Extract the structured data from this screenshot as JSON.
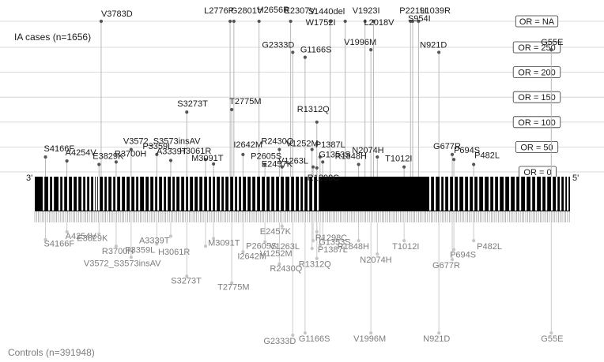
{
  "chart_data": {
    "type": "lollipop",
    "title": "",
    "case_group_label": "IA cases (n=1656)",
    "control_group_label": "Controls (n=391948)",
    "end_label_left": "3'",
    "end_label_right": "5'",
    "or_reference_lines": [
      {
        "label": "OR = NA",
        "value": null
      },
      {
        "label": "OR = 250",
        "value": 250
      },
      {
        "label": "OR = 200",
        "value": 200
      },
      {
        "label": "OR = 150",
        "value": 150
      },
      {
        "label": "OR = 100",
        "value": 100
      },
      {
        "label": "OR = 50",
        "value": 50
      },
      {
        "label": "OR = 0",
        "value": 0
      }
    ],
    "cases": [
      {
        "variant": "S4166F",
        "pos": 0.02,
        "or": 30
      },
      {
        "variant": "A4254V",
        "pos": 0.06,
        "or": 22
      },
      {
        "variant": "E3829K",
        "pos": 0.12,
        "or": 15
      },
      {
        "variant": "V3783D",
        "pos": 0.124,
        "or": "NA"
      },
      {
        "variant": "R3700H",
        "pos": 0.152,
        "or": 20
      },
      {
        "variant": "V3572_S3573insAV",
        "pos": 0.18,
        "or": 45
      },
      {
        "variant": "P3359L",
        "pos": 0.228,
        "or": 35
      },
      {
        "variant": "A3339T",
        "pos": 0.254,
        "or": 23
      },
      {
        "variant": "S3273T",
        "pos": 0.284,
        "or": 120
      },
      {
        "variant": "H3061R",
        "pos": 0.319,
        "or": 25
      },
      {
        "variant": "M3091T",
        "pos": 0.334,
        "or": 16
      },
      {
        "variant": "L2776P",
        "pos": 0.365,
        "or": "NA"
      },
      {
        "variant": "T2775M",
        "pos": 0.368,
        "or": 125
      },
      {
        "variant": "G2801V",
        "pos": 0.372,
        "or": "NA"
      },
      {
        "variant": "I2642M",
        "pos": 0.389,
        "or": 35
      },
      {
        "variant": "H2656R",
        "pos": 0.419,
        "or": "NA"
      },
      {
        "variant": "P2605S",
        "pos": 0.43,
        "or": 15
      },
      {
        "variant": "R2430Q",
        "pos": 0.457,
        "or": 45
      },
      {
        "variant": "E2307V",
        "pos": 0.478,
        "or": "NA"
      },
      {
        "variant": "G2333D",
        "pos": 0.482,
        "or": 240
      },
      {
        "variant": "E2457K",
        "pos": 0.462,
        "or": 10
      },
      {
        "variant": "G1166S",
        "pos": 0.505,
        "or": 230
      },
      {
        "variant": "V1252M",
        "pos": 0.518,
        "or": 45
      },
      {
        "variant": "R1312Q",
        "pos": 0.527,
        "or": 100
      },
      {
        "variant": "V1263L",
        "pos": 0.52,
        "or": 10
      },
      {
        "variant": "P1387L",
        "pos": 0.533,
        "or": 30
      },
      {
        "variant": "R1298C",
        "pos": 0.527,
        "or": 8
      },
      {
        "variant": "G1353S",
        "pos": 0.538,
        "or": 20
      },
      {
        "variant": "S1440del",
        "pos": 0.552,
        "or": "NA"
      },
      {
        "variant": "W1752I",
        "pos": 0.58,
        "or": "NA"
      },
      {
        "variant": "R1848H",
        "pos": 0.605,
        "or": 15
      },
      {
        "variant": "V1923I",
        "pos": 0.617,
        "or": "NA"
      },
      {
        "variant": "N2074H",
        "pos": 0.64,
        "or": 30
      },
      {
        "variant": "V1996M",
        "pos": 0.628,
        "or": 245
      },
      {
        "variant": "L2018V",
        "pos": 0.633,
        "or": "NA"
      },
      {
        "variant": "T1012I",
        "pos": 0.69,
        "or": 10
      },
      {
        "variant": "P2219L",
        "pos": 0.702,
        "or": "NA"
      },
      {
        "variant": "S954I",
        "pos": 0.706,
        "or": "NA"
      },
      {
        "variant": "L1039R",
        "pos": 0.717,
        "or": "NA"
      },
      {
        "variant": "N921D",
        "pos": 0.755,
        "or": 240
      },
      {
        "variant": "G677R",
        "pos": 0.78,
        "or": 35
      },
      {
        "variant": "P694S",
        "pos": 0.783,
        "or": 25
      },
      {
        "variant": "P482L",
        "pos": 0.82,
        "or": 15
      },
      {
        "variant": "G55E",
        "pos": 0.965,
        "or": 245
      }
    ],
    "controls": [
      {
        "variant": "A4254V",
        "pos": 0.06,
        "depth": 0.07
      },
      {
        "variant": "S4166F",
        "pos": 0.02,
        "depth": 0.14
      },
      {
        "variant": "E3829K",
        "pos": 0.12,
        "depth": 0.09
      },
      {
        "variant": "R3700H",
        "pos": 0.152,
        "depth": 0.2
      },
      {
        "variant": "V3572_S3573insAV",
        "pos": 0.18,
        "depth": 0.3
      },
      {
        "variant": "A3339T",
        "pos": 0.254,
        "depth": 0.11
      },
      {
        "variant": "P3359L",
        "pos": 0.228,
        "depth": 0.18
      },
      {
        "variant": "M3091T",
        "pos": 0.334,
        "depth": 0.13
      },
      {
        "variant": "H3061R",
        "pos": 0.319,
        "depth": 0.2
      },
      {
        "variant": "S3273T",
        "pos": 0.284,
        "depth": 0.47
      },
      {
        "variant": "T2775M",
        "pos": 0.368,
        "depth": 0.53
      },
      {
        "variant": "I2642M",
        "pos": 0.389,
        "depth": 0.25
      },
      {
        "variant": "P2605S",
        "pos": 0.43,
        "depth": 0.16
      },
      {
        "variant": "R2430Q",
        "pos": 0.457,
        "depth": 0.36
      },
      {
        "variant": "E2457K",
        "pos": 0.462,
        "depth": 0.02
      },
      {
        "variant": "V1263L",
        "pos": 0.52,
        "depth": 0.15
      },
      {
        "variant": "V1252M",
        "pos": 0.518,
        "depth": 0.22
      },
      {
        "variant": "R1312Q",
        "pos": 0.527,
        "depth": 0.31
      },
      {
        "variant": "R1298C",
        "pos": 0.527,
        "depth": 0.07
      },
      {
        "variant": "P1387L",
        "pos": 0.533,
        "depth": 0.19
      },
      {
        "variant": "G1353S",
        "pos": 0.538,
        "depth": 0.13
      },
      {
        "variant": "R1848H",
        "pos": 0.605,
        "depth": 0.15
      },
      {
        "variant": "N2074H",
        "pos": 0.64,
        "depth": 0.27
      },
      {
        "variant": "T1012I",
        "pos": 0.69,
        "depth": 0.15
      },
      {
        "variant": "P482L",
        "pos": 0.82,
        "depth": 0.15
      },
      {
        "variant": "P694S",
        "pos": 0.783,
        "depth": 0.23
      },
      {
        "variant": "G677R",
        "pos": 0.78,
        "depth": 0.32
      },
      {
        "variant": "G2333D",
        "pos": 0.482,
        "depth": 1.0
      },
      {
        "variant": "G1166S",
        "pos": 0.505,
        "depth": 0.98
      },
      {
        "variant": "V1996M",
        "pos": 0.628,
        "depth": 0.98
      },
      {
        "variant": "N921D",
        "pos": 0.755,
        "depth": 0.98
      },
      {
        "variant": "G55E",
        "pos": 0.965,
        "depth": 0.98
      }
    ],
    "colors": {
      "case_point": "#555555",
      "case_stem": "#b8b8b8",
      "control_point": "#c6c6c6",
      "control_stem": "#cccccc",
      "case_text": "#1a1a1a",
      "control_text": "#7d7d7d",
      "grid": "#cfcfcf",
      "gene_bar": "#000000"
    }
  }
}
